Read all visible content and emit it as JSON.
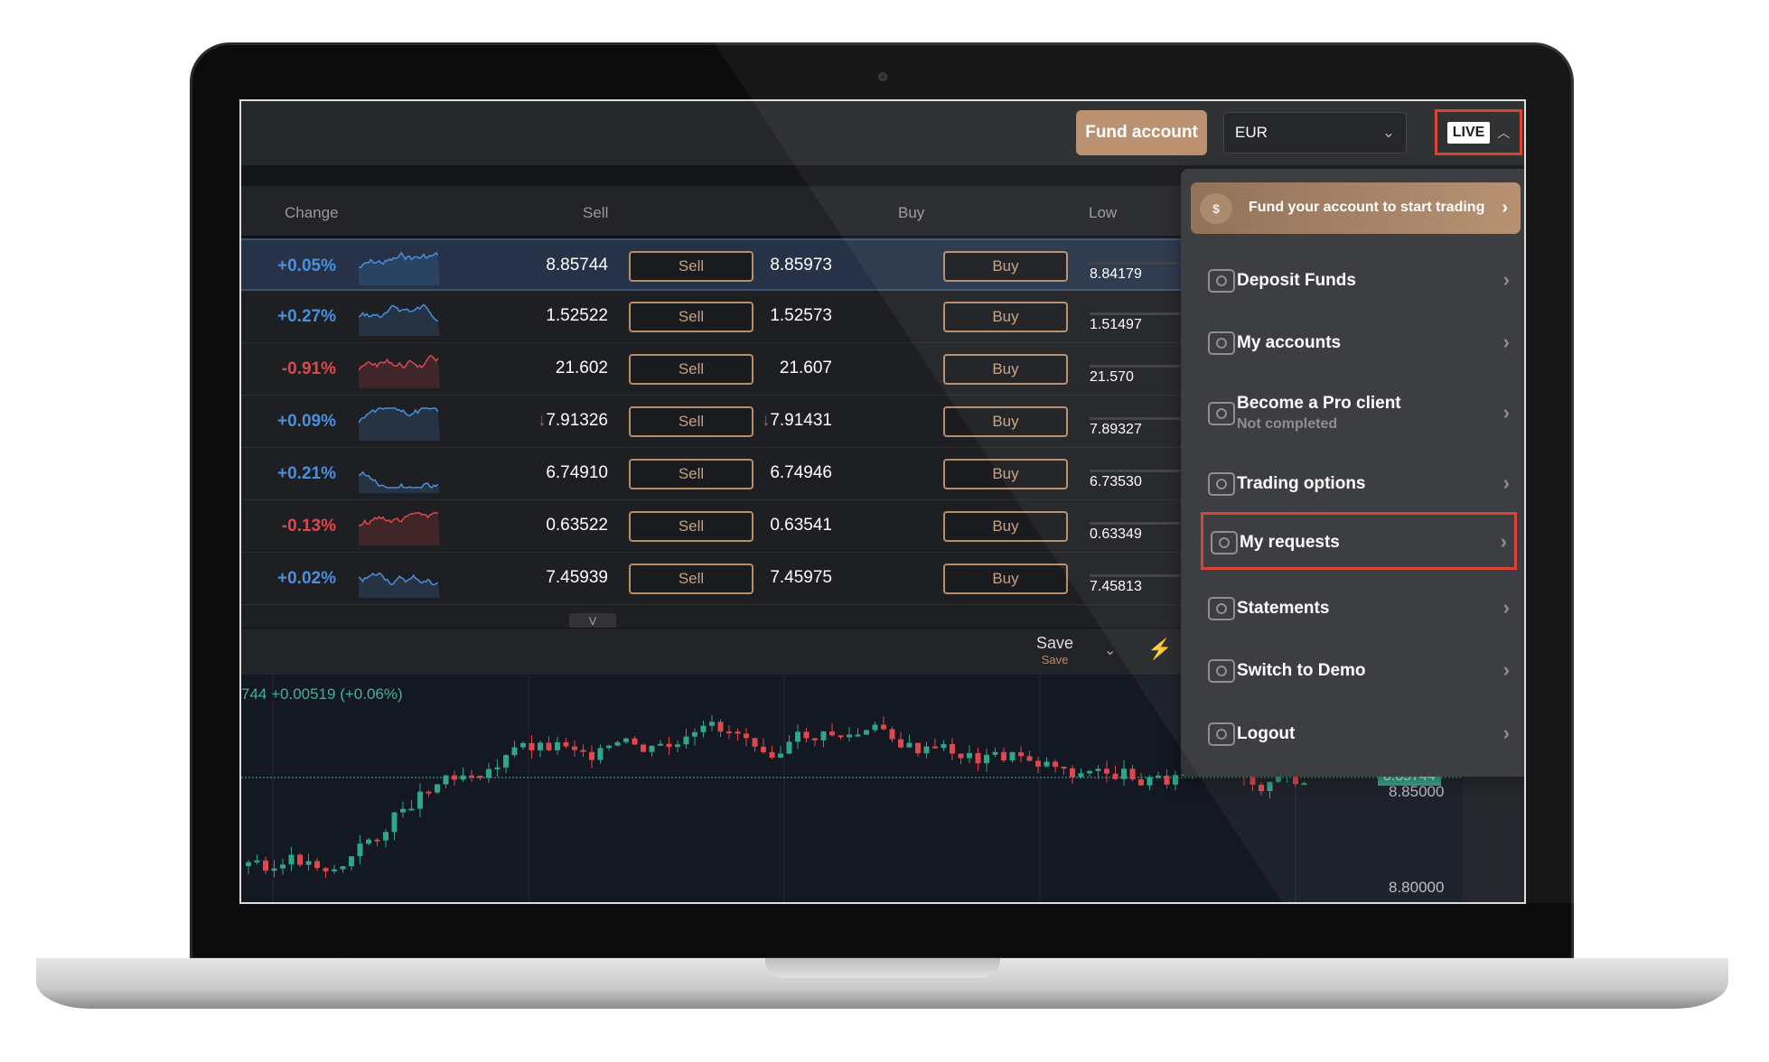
{
  "topbar": {
    "fund_button": "Fund account",
    "currency": "EUR",
    "account_mode": "LIVE"
  },
  "table": {
    "headers": {
      "change": "Change",
      "sell": "Sell",
      "buy": "Buy",
      "low": "Low"
    },
    "rows": [
      {
        "change": "+0.05%",
        "dir": "up",
        "sell": "8.85744",
        "buy": "8.85973",
        "low": "8.84179",
        "arrow": ""
      },
      {
        "change": "+0.27%",
        "dir": "up",
        "sell": "1.52522",
        "buy": "1.52573",
        "low": "1.51497",
        "arrow": ""
      },
      {
        "change": "-0.91%",
        "dir": "down",
        "sell": "21.602",
        "buy": "21.607",
        "low": "21.570",
        "arrow": ""
      },
      {
        "change": "+0.09%",
        "dir": "up",
        "sell": "7.91326",
        "buy": "7.91431",
        "low": "7.89327",
        "arrow": "↓"
      },
      {
        "change": "+0.21%",
        "dir": "up",
        "sell": "6.74910",
        "buy": "6.74946",
        "low": "6.73530",
        "arrow": ""
      },
      {
        "change": "-0.13%",
        "dir": "down",
        "sell": "0.63522",
        "buy": "0.63541",
        "low": "0.63349",
        "arrow": ""
      },
      {
        "change": "+0.02%",
        "dir": "up",
        "sell": "7.45939",
        "buy": "7.45975",
        "low": "7.45813",
        "arrow": ""
      }
    ],
    "sell_label": "Sell",
    "buy_label": "Buy"
  },
  "toolbar": {
    "save": "Save",
    "save_sub": "Save"
  },
  "chart": {
    "change_label": "744  +0.00519 (+0.06%)",
    "current_price": "8.85744",
    "y_ticks": [
      "8.85000",
      "8.80000"
    ]
  },
  "menu": {
    "banner": "Fund your account to start trading",
    "items": [
      {
        "label": "Deposit Funds",
        "icon": "deposit-icon"
      },
      {
        "label": "My accounts",
        "icon": "accounts-icon"
      },
      {
        "label": "Become a Pro client",
        "sub": "Not completed",
        "icon": "badge-check-icon"
      },
      {
        "label": "Trading options",
        "icon": "toggles-icon"
      },
      {
        "label": "My requests",
        "icon": "folder-download-icon",
        "highlighted": true
      },
      {
        "label": "Statements",
        "icon": "statements-icon"
      },
      {
        "label": "Switch to Demo",
        "icon": "switch-icon"
      },
      {
        "label": "Logout",
        "icon": "logout-icon"
      }
    ]
  },
  "colors": {
    "accent": "#b88d6a",
    "up": "#4a8fe0",
    "down": "#e0474c",
    "candle_up": "#2fa58a",
    "candle_down": "#e0474c",
    "highlight": "#d83a2a"
  }
}
